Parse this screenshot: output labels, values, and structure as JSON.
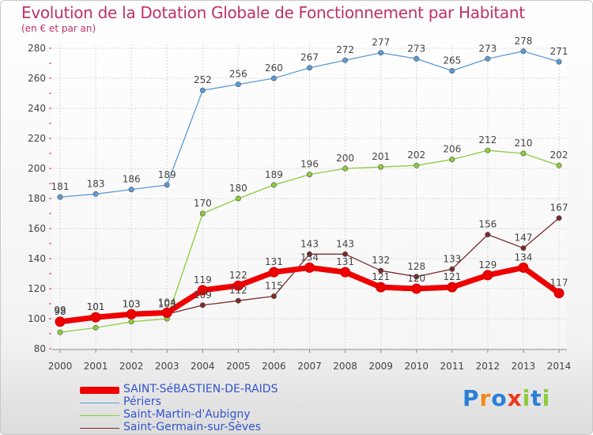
{
  "chart_data": {
    "type": "line",
    "title": "Evolution de la Dotation Globale de Fonctionnement par Habitant",
    "subtitle": "(en € et par an)",
    "xlabel": "",
    "ylabel": "",
    "x": [
      "2000",
      "2001",
      "2002",
      "2003",
      "2004",
      "2005",
      "2006",
      "2007",
      "2008",
      "2009",
      "2010",
      "2011",
      "2012",
      "2013",
      "2014"
    ],
    "ylim": [
      80,
      280
    ],
    "yticks": [
      80,
      100,
      120,
      140,
      160,
      180,
      200,
      220,
      240,
      260,
      280
    ],
    "grid": true,
    "series": [
      {
        "name": "Périers",
        "color": "#5b9bd5",
        "values": [
          181,
          183,
          186,
          189,
          252,
          256,
          260,
          267,
          272,
          277,
          273,
          265,
          273,
          278,
          271
        ]
      },
      {
        "name": "Saint-Martin-d'Aubigny",
        "color": "#8ccc3c",
        "values": [
          91,
          94,
          98,
          100,
          170,
          180,
          189,
          196,
          200,
          201,
          202,
          206,
          212,
          210,
          202
        ]
      },
      {
        "name": "Saint-Germain-sur-Sèves",
        "color": "#7a2a2a",
        "values": [
          99,
          101,
          103,
          103,
          109,
          112,
          115,
          143,
          143,
          132,
          128,
          133,
          156,
          147,
          167
        ]
      },
      {
        "name": "SAINT-SéBASTIEN-DE-RAIDS",
        "color": "#ee0000",
        "values": [
          98,
          101,
          103,
          104,
          119,
          122,
          131,
          134,
          131,
          121,
          120,
          121,
          129,
          134,
          117
        ]
      }
    ],
    "value_labels": [
      [
        "181",
        "183",
        "186",
        "189",
        "252",
        "256",
        "260",
        "267",
        "272",
        "277",
        "273",
        "265",
        "273",
        "278",
        "271"
      ],
      [
        "",
        "",
        "",
        "",
        "170",
        "180",
        "189",
        "196",
        "200",
        "201",
        "202",
        "206",
        "212",
        "210",
        "202"
      ],
      [
        "99",
        "101",
        "103",
        "103",
        "109",
        "112",
        "115",
        "143",
        "143",
        "132",
        "128",
        "133",
        "156",
        "147",
        "167"
      ],
      [
        "98",
        "101",
        "103",
        "104",
        "119",
        "122",
        "131",
        "134",
        "131",
        "121",
        "120",
        "121",
        "129",
        "134",
        "117"
      ]
    ]
  },
  "legend": {
    "items": [
      {
        "label": "SAINT-SéBASTIEN-DE-RAIDS",
        "color": "#ee0000"
      },
      {
        "label": "Périers",
        "color": "#5b9bd5"
      },
      {
        "label": "Saint-Martin-d'Aubigny",
        "color": "#8ccc3c"
      },
      {
        "label": "Saint-Germain-sur-Sèves",
        "color": "#7a2a2a"
      }
    ]
  },
  "logo": {
    "text": "Proxiti",
    "letter_colors": [
      "#2b7fd6",
      "#f08a1c",
      "#2b7fd6",
      "#e83a1a",
      "#8ccc3c",
      "#2b7fd6",
      "#8ccc3c"
    ]
  }
}
